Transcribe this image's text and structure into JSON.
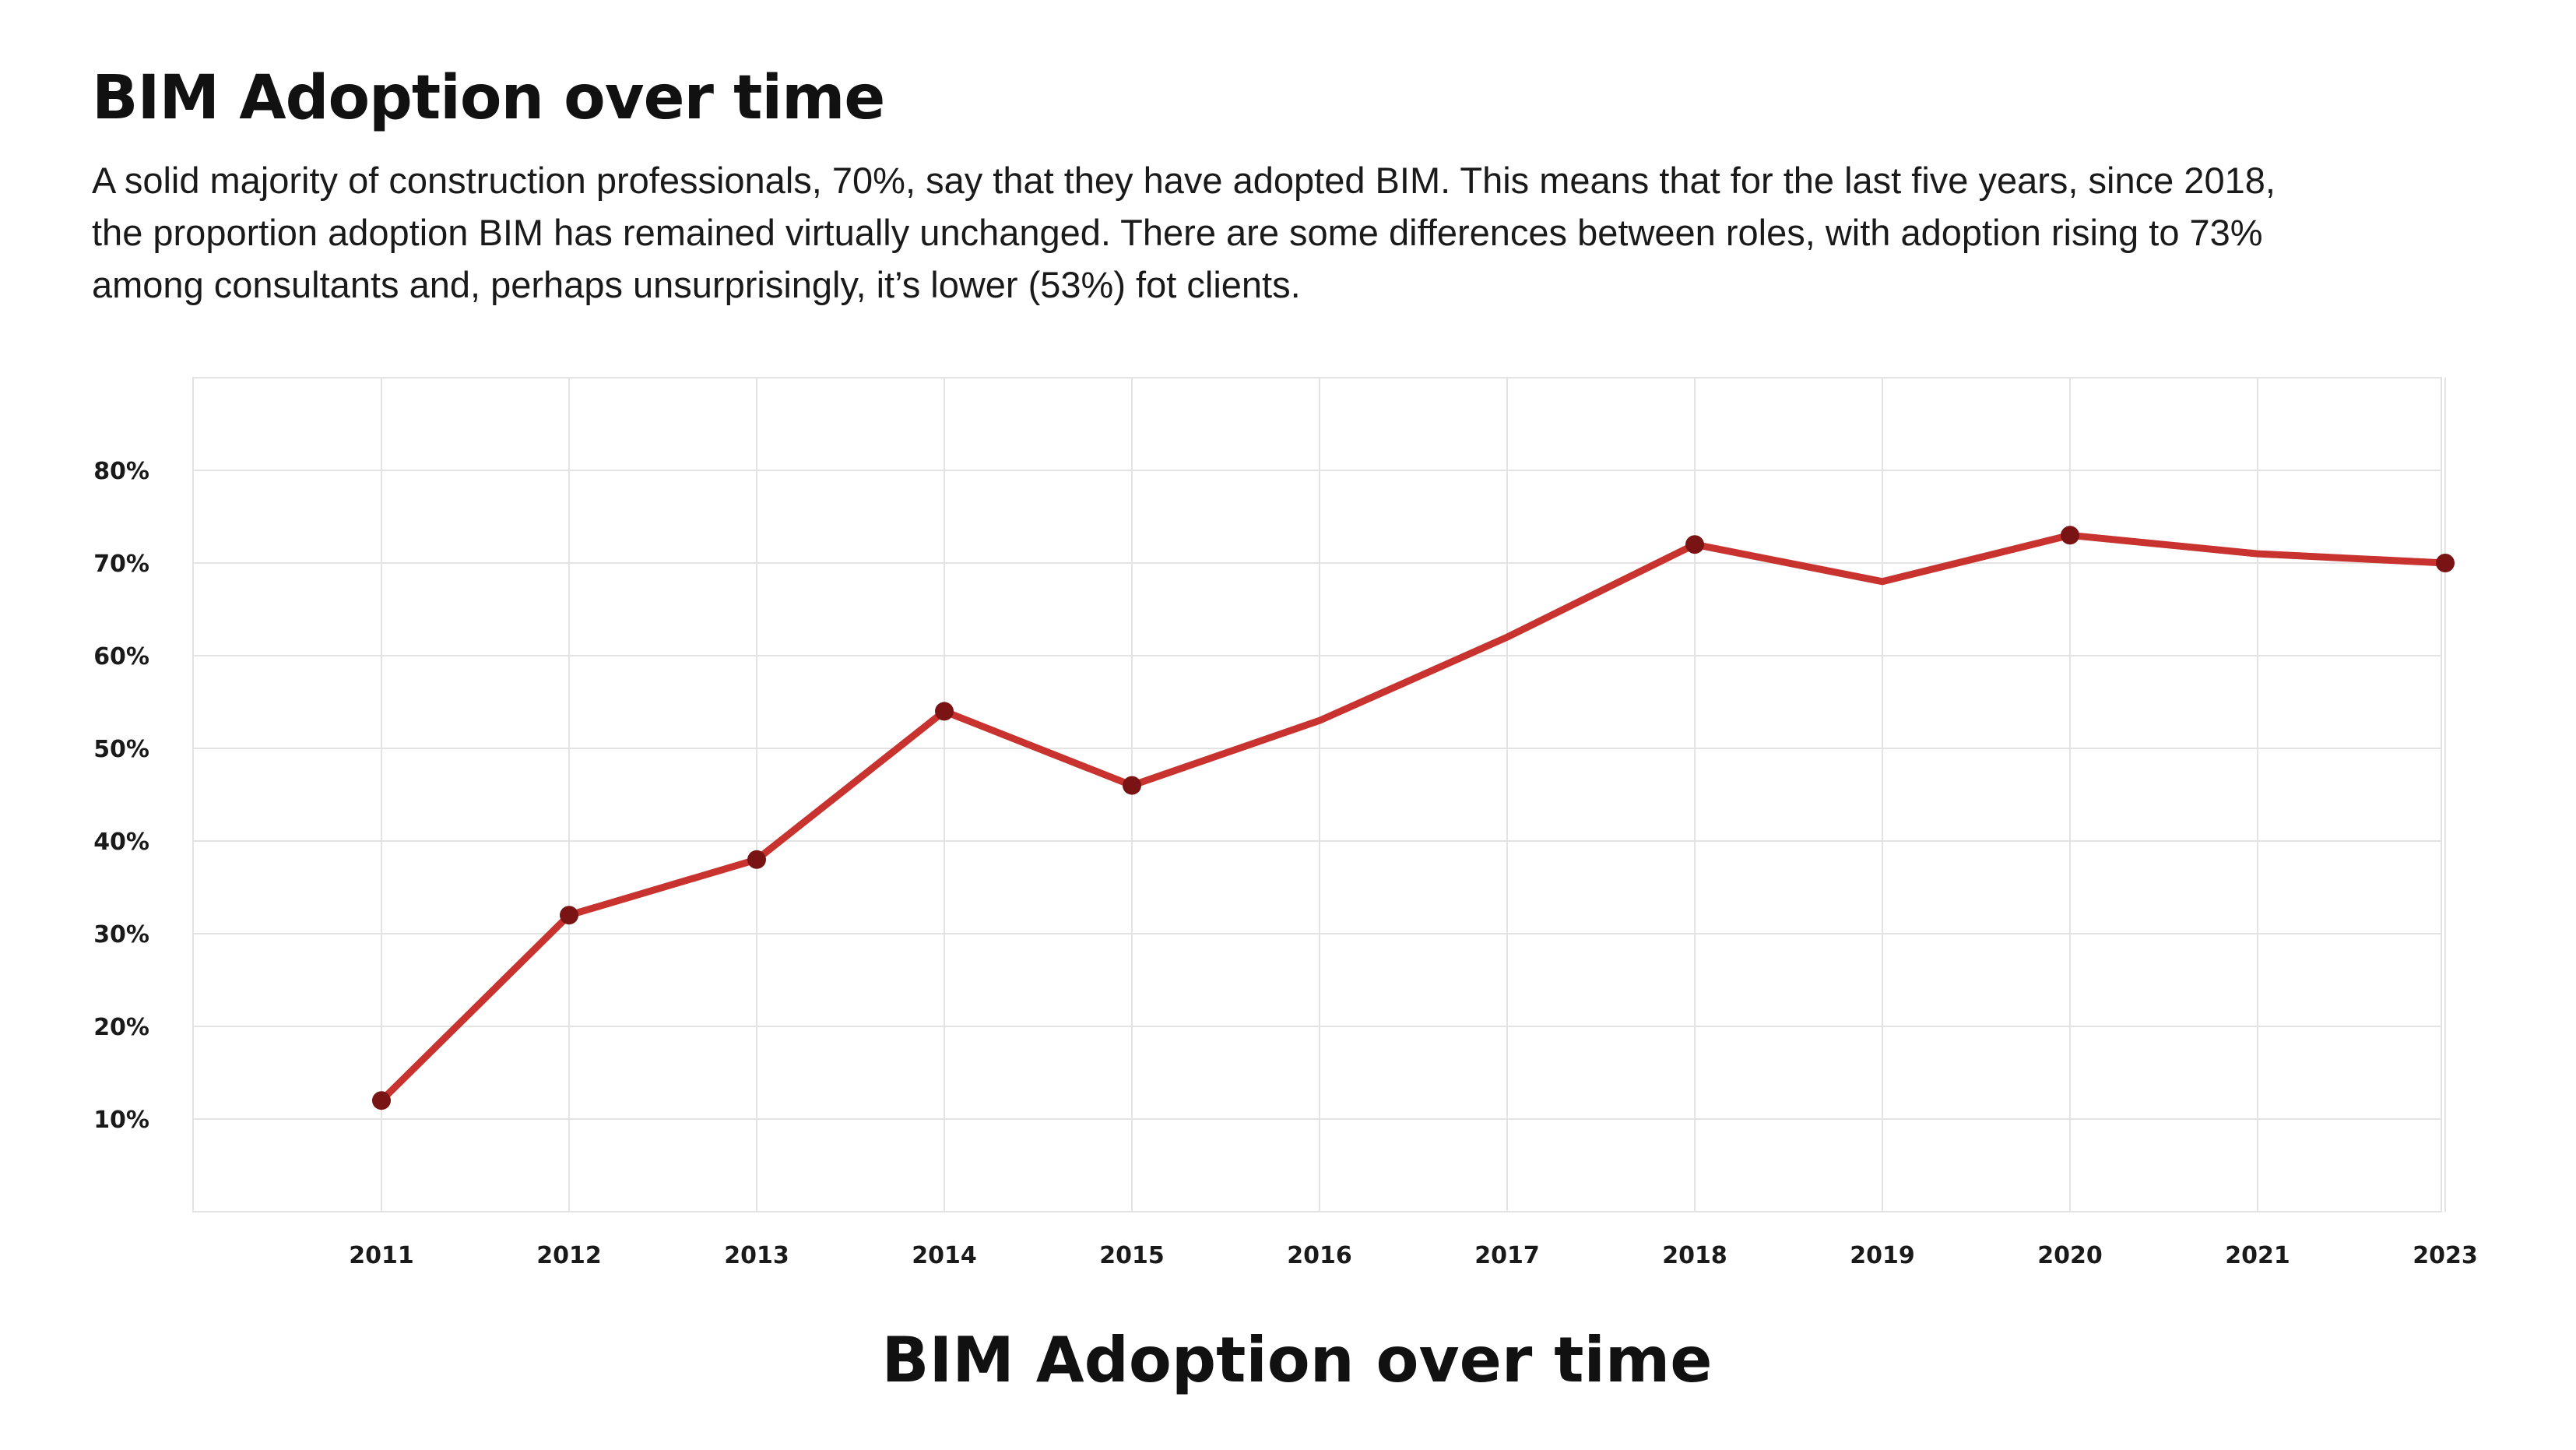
{
  "header": {
    "title": "BIM Adoption over time",
    "description": "A solid majority of construction professionals, 70%, say that they have adopted BIM. This means that for the last five years, since 2018, the proportion adoption BIM has remained virtually unchanged. There are some differences between roles, with adoption rising to 73% among consultants and, perhaps unsurprisingly, it’s lower (53%) fot clients."
  },
  "colors": {
    "line": "#c8332f",
    "marker": "#7a1414",
    "grid": "#e3e3e3"
  },
  "chart_data": {
    "type": "line",
    "title": "BIM Adoption over time",
    "xlabel": "",
    "ylabel": "",
    "categories": [
      "2011",
      "2012",
      "2013",
      "2014",
      "2015",
      "2016",
      "2017",
      "2018",
      "2019",
      "2020",
      "2021",
      "2023"
    ],
    "series": [
      {
        "values": [
          12,
          32,
          38,
          54,
          46,
          53,
          62,
          72,
          68,
          73,
          71,
          70
        ]
      }
    ],
    "markers": [
      true,
      true,
      true,
      true,
      true,
      false,
      false,
      true,
      false,
      true,
      false,
      true
    ],
    "yticks": [
      "10%",
      "20%",
      "30%",
      "40%",
      "50%",
      "60%",
      "70%",
      "80%"
    ],
    "ylim": [
      0,
      90
    ],
    "grid": true,
    "legend": "none"
  }
}
